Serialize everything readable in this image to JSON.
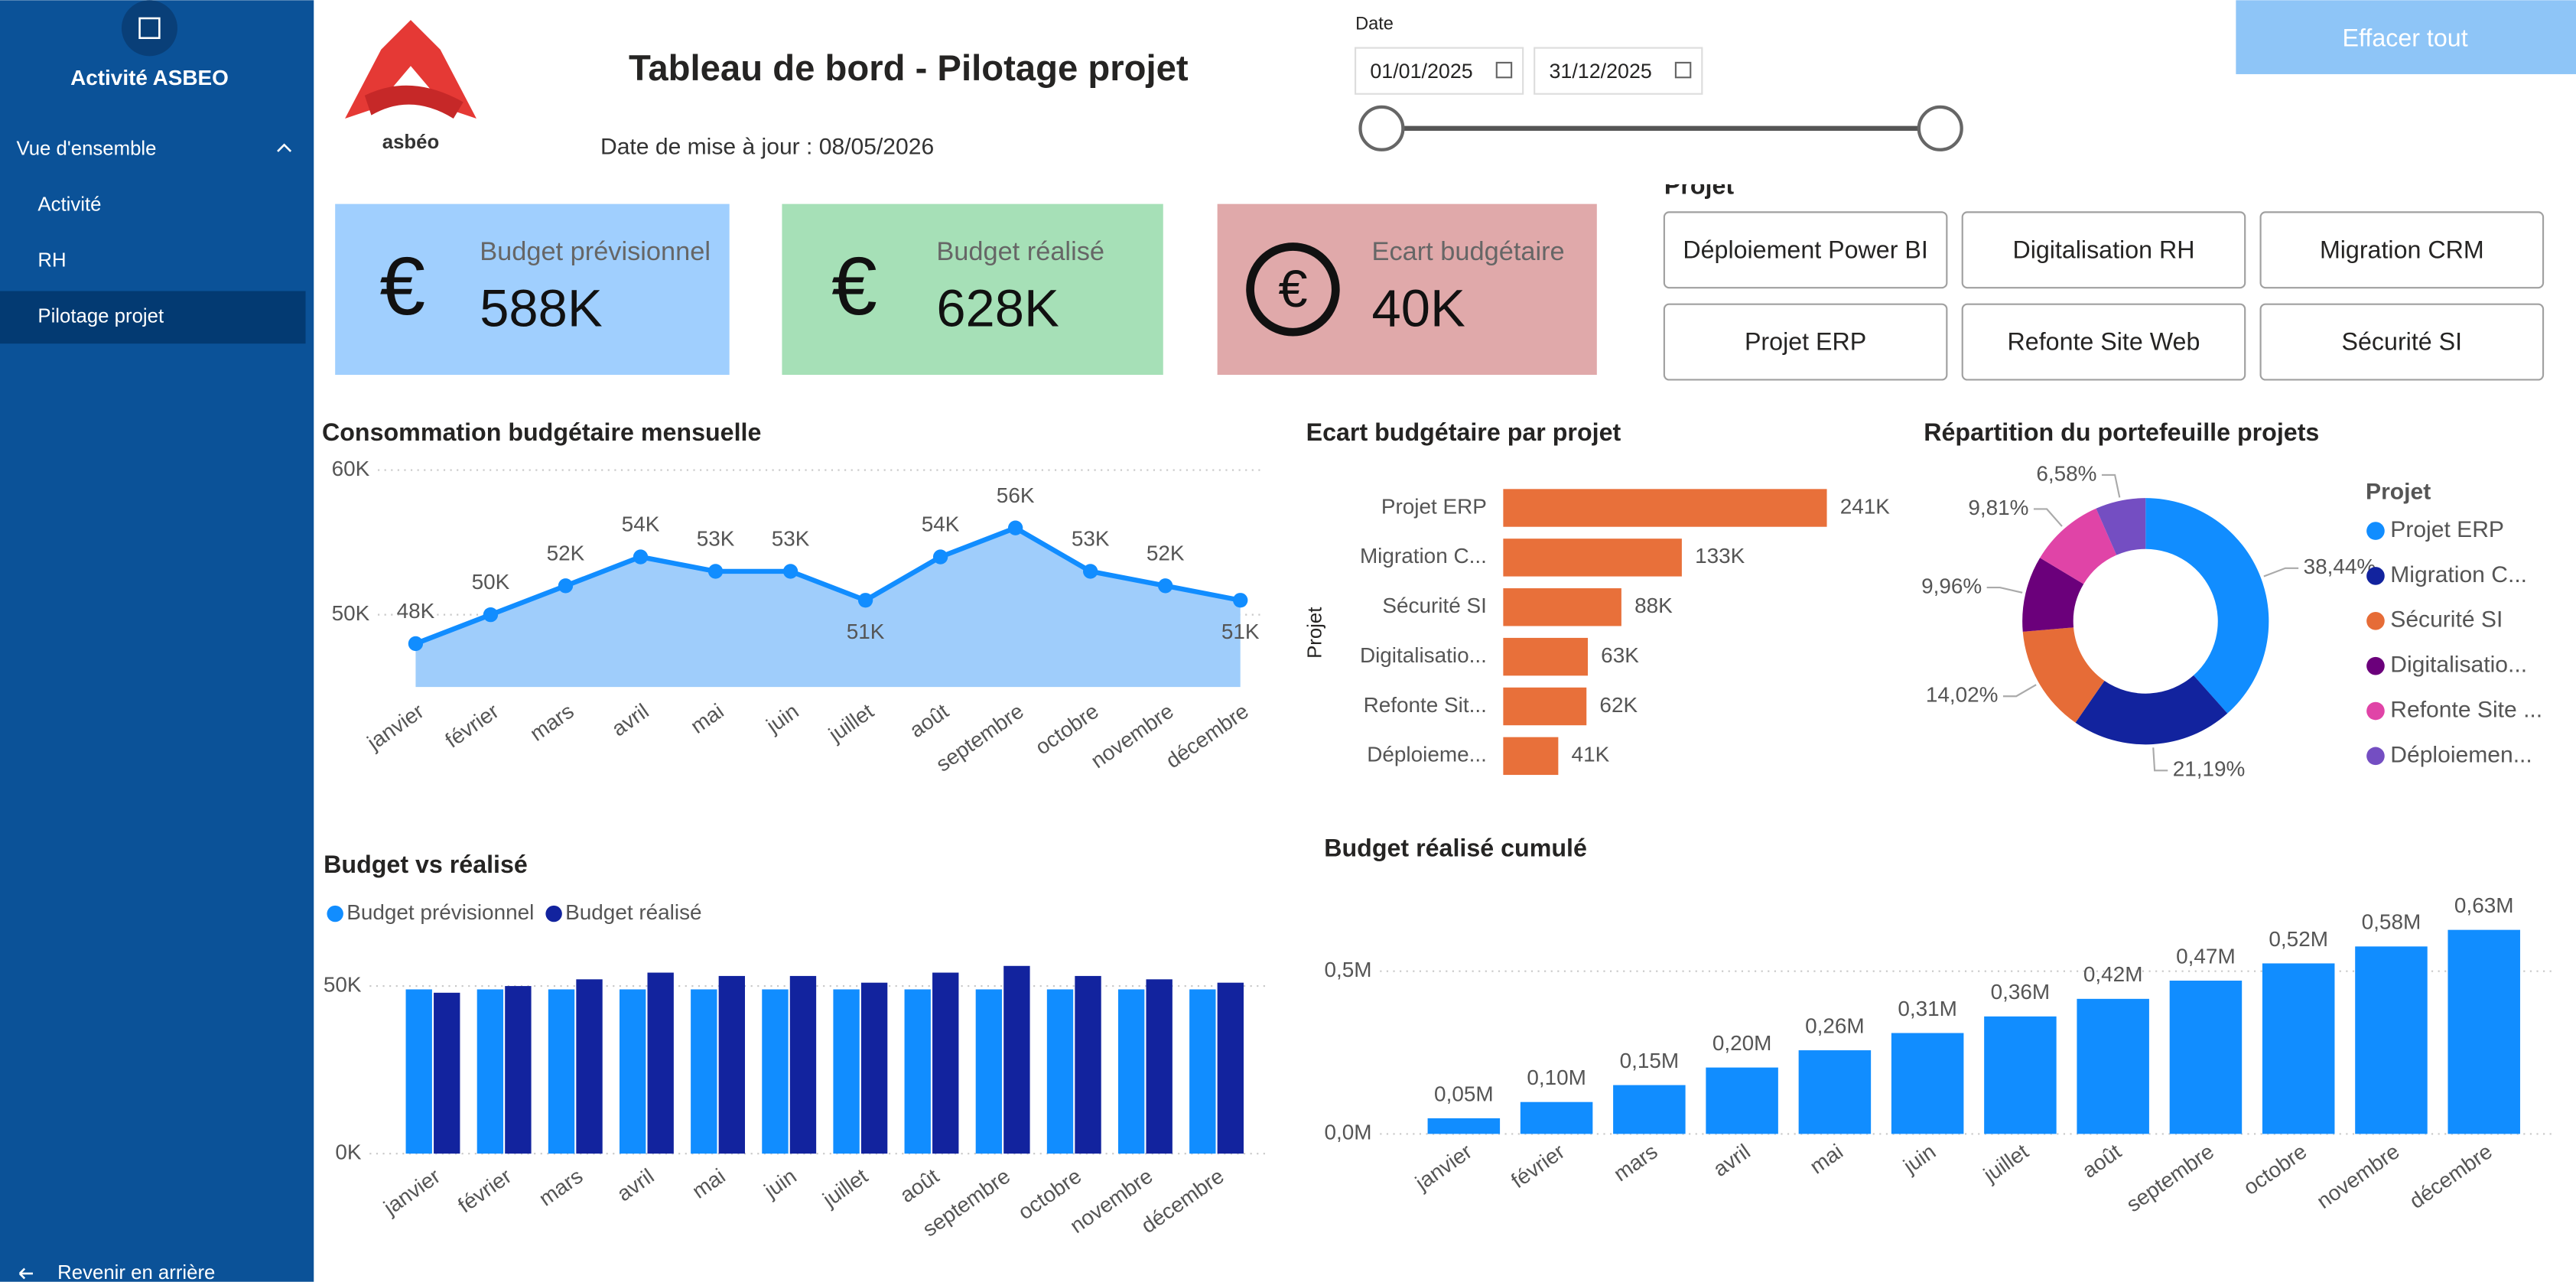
{
  "sidebar": {
    "app_title": "Activité ASBEO",
    "section": "Vue d'ensemble",
    "items": [
      "Activité",
      "RH",
      "Pilotage projet"
    ],
    "back": "Revenir en arrière"
  },
  "header": {
    "logo_text": "asbéo",
    "title": "Tableau de bord - Pilotage projet",
    "update_date": "Date de mise à jour : 08/05/2026",
    "date_label": "Date",
    "date_start": "01/01/2025",
    "date_end": "31/12/2025",
    "clear_button": "Effacer tout"
  },
  "kpis": [
    {
      "icon": "€",
      "label": "Budget prévisionnel",
      "value": "588K"
    },
    {
      "icon": "€",
      "label": "Budget réalisé",
      "value": "628K"
    },
    {
      "icon": "€",
      "label": "Ecart budgétaire",
      "value": "40K"
    }
  ],
  "project_filter": {
    "label": "Projet",
    "options": [
      "Déploiement Power BI",
      "Digitalisation RH",
      "Migration CRM",
      "Projet ERP",
      "Refonte Site Web",
      "Sécurité SI"
    ]
  },
  "chart_data": [
    {
      "type": "line",
      "area": true,
      "title": "Consommation budgétaire mensuelle",
      "categories": [
        "janvier",
        "février",
        "mars",
        "avril",
        "mai",
        "juin",
        "juillet",
        "août",
        "septembre",
        "octobre",
        "novembre",
        "décembre"
      ],
      "values": [
        48000,
        50000,
        52000,
        54000,
        53000,
        53000,
        51000,
        54000,
        56000,
        53000,
        52000,
        51000
      ],
      "value_labels": [
        "48K",
        "50K",
        "52K",
        "54K",
        "53K",
        "53K",
        "51K",
        "54K",
        "56K",
        "53K",
        "52K",
        "51K"
      ],
      "color": "#118dff",
      "area_color": "#9fcdfb",
      "ylim": [
        45000,
        60000
      ],
      "yticks": [
        {
          "value": 50000,
          "label": "50K"
        },
        {
          "value": 60000,
          "label": "60K"
        }
      ],
      "grid": true
    },
    {
      "type": "bar",
      "orientation": "horizontal",
      "title": "Ecart budgétaire par projet",
      "y_label": "Projet",
      "categories": [
        "Projet ERP",
        "Migration C...",
        "Sécurité SI",
        "Digitalisatio...",
        "Refonte Sit...",
        "Déploieme..."
      ],
      "values": [
        241000,
        133000,
        88000,
        63000,
        62000,
        41000
      ],
      "value_labels": [
        "241K",
        "133K",
        "88K",
        "63K",
        "62K",
        "41K"
      ],
      "color": "#e8703a",
      "xlim": [
        0,
        241000
      ]
    },
    {
      "type": "donut",
      "title": "Répartition du portefeuille projets",
      "legend_title": "Projet",
      "categories": [
        "Projet ERP",
        "Migration C...",
        "Sécurité SI",
        "Digitalisatio...",
        "Refonte Site ...",
        "Déploiemen..."
      ],
      "values": [
        38.44,
        21.19,
        14.02,
        9.96,
        9.81,
        6.58
      ],
      "value_labels": [
        "38,44%",
        "21,19%",
        "14,02%",
        "9,96%",
        "9,81%",
        "6,58%"
      ],
      "colors": [
        "#118dff",
        "#12239e",
        "#e66c37",
        "#6b007b",
        "#e044a7",
        "#744ec2"
      ]
    },
    {
      "type": "bar",
      "orientation": "vertical",
      "title": "Budget vs réalisé",
      "categories": [
        "janvier",
        "février",
        "mars",
        "avril",
        "mai",
        "juin",
        "juillet",
        "août",
        "septembre",
        "octobre",
        "novembre",
        "décembre"
      ],
      "series": [
        {
          "name": "Budget prévisionnel",
          "color": "#118dff",
          "values": [
            49000,
            49000,
            49000,
            49000,
            49000,
            49000,
            49000,
            49000,
            49000,
            49000,
            49000,
            49000
          ]
        },
        {
          "name": "Budget réalisé",
          "color": "#12239e",
          "values": [
            48000,
            50000,
            52000,
            54000,
            53000,
            53000,
            51000,
            54000,
            56000,
            53000,
            52000,
            51000
          ]
        }
      ],
      "ylim": [
        0,
        60000
      ],
      "yticks": [
        {
          "value": 0,
          "label": "0K"
        },
        {
          "value": 50000,
          "label": "50K"
        }
      ],
      "grid": true
    },
    {
      "type": "bar",
      "orientation": "vertical",
      "title": "Budget réalisé cumulé",
      "categories": [
        "janvier",
        "février",
        "mars",
        "avril",
        "mai",
        "juin",
        "juillet",
        "août",
        "septembre",
        "octobre",
        "novembre",
        "décembre"
      ],
      "values": [
        48000,
        98000,
        150000,
        204000,
        257000,
        310000,
        361000,
        415000,
        471000,
        524000,
        576000,
        627000
      ],
      "value_labels": [
        "0,05M",
        "0,10M",
        "0,15M",
        "0,20M",
        "0,26M",
        "0,31M",
        "0,36M",
        "0,42M",
        "0,47M",
        "0,52M",
        "0,58M",
        "0,63M"
      ],
      "color": "#118dff",
      "ylim": [
        0,
        720000
      ],
      "yticks": [
        {
          "value": 0,
          "label": "0,0M"
        },
        {
          "value": 500000,
          "label": "0,5M"
        }
      ],
      "grid": true
    }
  ]
}
